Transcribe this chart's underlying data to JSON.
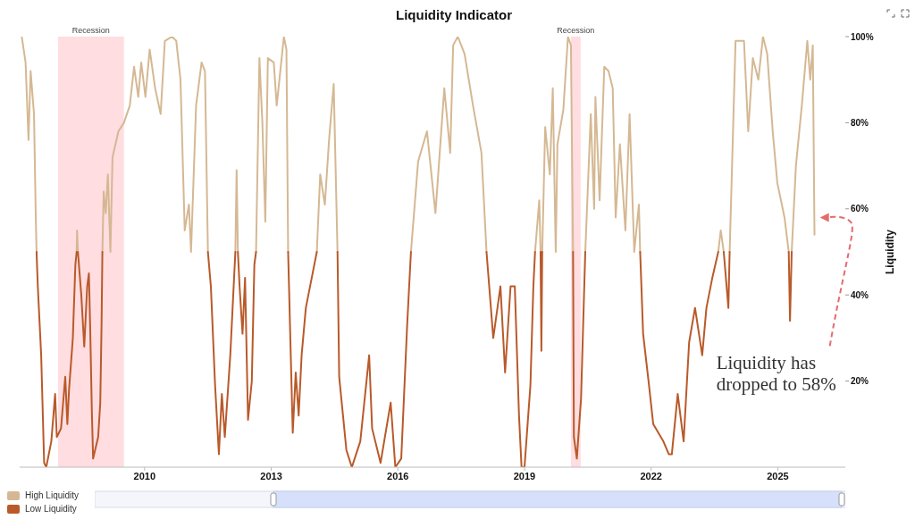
{
  "chart_data": {
    "type": "line",
    "title": "Liquidity Indicator",
    "ylabel": "Liquidity",
    "xlim": [
      2007.04,
      2026.6
    ],
    "xticks": [
      2010,
      2013,
      2016,
      2019,
      2022,
      2025
    ],
    "ylim": [
      0,
      100
    ],
    "yticks": [
      {
        "value": 20,
        "label": "20%"
      },
      {
        "value": 40,
        "label": "40%"
      },
      {
        "value": 60,
        "label": "60%"
      },
      {
        "value": 80,
        "label": "80%"
      },
      {
        "value": 100,
        "label": "100%"
      }
    ],
    "legend": "bottom left",
    "bands": [
      {
        "axis": "x",
        "from": 2007.95,
        "to": 2009.51,
        "label": "Recession",
        "color": "#ffdde1"
      },
      {
        "axis": "x",
        "from": 2020.1,
        "to": 2020.33,
        "label": "Recession",
        "color": "#ffdde1"
      }
    ],
    "annotations": [
      "Liquidity has dropped to 58%"
    ],
    "series": [
      {
        "name": "High Liquidity",
        "color": "#d5b893",
        "x": [
          2007.09,
          2007.18,
          2007.25,
          2007.3,
          2007.38,
          2007.42,
          2007.44,
          2007.9,
          2008.39,
          2008.4,
          2008.42,
          2008.7,
          2009.0,
          2009.03,
          2009.08,
          2009.13,
          2009.19,
          2009.24,
          2009.38,
          2009.51,
          2009.65,
          2009.75,
          2009.85,
          2009.92,
          2010.02,
          2010.12,
          2010.25,
          2010.38,
          2010.48,
          2010.65,
          2010.75,
          2010.85,
          2010.95,
          2011.05,
          2011.1,
          2011.22,
          2011.35,
          2011.43,
          2011.5,
          2011.8,
          2012.15,
          2012.18,
          2012.21,
          2012.4,
          2012.64,
          2012.72,
          2012.79,
          2012.86,
          2012.92,
          2013.06,
          2013.13,
          2013.3,
          2013.36,
          2013.4,
          2013.7,
          2014.08,
          2014.16,
          2014.27,
          2014.37,
          2014.48,
          2014.57,
          2015.4,
          2016.31,
          2016.48,
          2016.69,
          2016.89,
          2017.1,
          2017.24,
          2017.31,
          2017.42,
          2017.58,
          2017.78,
          2017.98,
          2018.1,
          2018.7,
          2019.25,
          2019.35,
          2019.38,
          2019.4,
          2019.42,
          2019.49,
          2019.6,
          2019.67,
          2019.74,
          2019.78,
          2019.92,
          2020.03,
          2020.1,
          2020.15,
          2020.3,
          2020.44,
          2020.57,
          2020.65,
          2020.68,
          2020.78,
          2020.89,
          2020.99,
          2021.09,
          2021.16,
          2021.26,
          2021.39,
          2021.49,
          2021.6,
          2021.71,
          2021.74,
          2022.5,
          2023.59,
          2023.65,
          2023.72,
          2023.8,
          2023.86,
          2024.0,
          2024.2,
          2024.3,
          2024.41,
          2024.54,
          2024.65,
          2024.75,
          2024.88,
          2024.99,
          2025.16,
          2025.26,
          2025.3,
          2025.33,
          2025.43,
          2025.57,
          2025.7,
          2025.77,
          2025.83,
          2025.87
        ],
        "values": [
          100,
          94,
          76,
          92,
          82,
          59,
          50,
          null,
          50,
          55,
          50,
          null,
          50,
          64,
          59,
          68,
          50,
          72,
          78,
          80,
          84,
          93,
          86,
          94,
          86,
          97,
          88,
          82,
          99,
          100,
          99,
          90,
          55,
          61,
          50,
          84,
          94,
          92,
          50,
          null,
          50,
          69,
          50,
          null,
          50,
          95,
          80,
          57,
          95,
          94,
          84,
          100,
          97,
          50,
          null,
          50,
          68,
          61,
          76,
          89,
          50,
          null,
          50,
          71,
          78,
          59,
          88,
          73,
          98,
          100,
          96,
          84,
          73,
          50,
          null,
          50,
          62,
          50,
          null,
          50,
          79,
          68,
          88,
          50,
          75,
          83,
          100,
          98,
          50,
          null,
          50,
          82,
          60,
          86,
          62,
          93,
          92,
          88,
          58,
          75,
          55,
          82,
          50,
          61,
          50,
          null,
          50,
          55,
          50,
          null,
          50,
          99,
          99,
          78,
          95,
          90,
          100,
          96,
          78,
          66,
          58,
          50,
          null,
          50,
          70,
          84,
          99,
          90,
          98,
          54
        ]
      },
      {
        "name": "Low Liquidity",
        "color": "#b95a2a",
        "x": [
          2007.44,
          2007.47,
          2007.55,
          2007.62,
          2007.67,
          2007.79,
          2007.88,
          2007.92,
          2008.02,
          2008.12,
          2008.17,
          2008.21,
          2008.3,
          2008.36,
          2008.39,
          2008.4,
          2008.42,
          2008.5,
          2008.57,
          2008.64,
          2008.68,
          2008.71,
          2008.75,
          2008.78,
          2008.9,
          2008.95,
          2008.98,
          2009.0,
          2010.0,
          2011.5,
          2011.57,
          2011.67,
          2011.76,
          2011.83,
          2011.9,
          2012.03,
          2012.15,
          2012.18,
          2012.21,
          2012.25,
          2012.32,
          2012.38,
          2012.45,
          2012.54,
          2012.6,
          2012.64,
          2013.0,
          2013.4,
          2013.51,
          2013.58,
          2013.65,
          2013.72,
          2013.82,
          2013.96,
          2014.08,
          2014.3,
          2014.57,
          2014.61,
          2014.78,
          2014.91,
          2015.11,
          2015.32,
          2015.39,
          2015.59,
          2015.83,
          2015.94,
          2016.08,
          2016.22,
          2016.31,
          2017.0,
          2018.1,
          2018.26,
          2018.43,
          2018.54,
          2018.67,
          2018.77,
          2018.87,
          2018.93,
          2019.0,
          2019.14,
          2019.21,
          2019.25,
          2019.3,
          2019.38,
          2019.4,
          2019.42,
          2019.8,
          2020.15,
          2020.17,
          2020.24,
          2020.34,
          2020.41,
          2020.44,
          2021.0,
          2021.74,
          2021.81,
          2021.95,
          2022.05,
          2022.29,
          2022.42,
          2022.49,
          2022.63,
          2022.77,
          2022.9,
          2023.04,
          2023.21,
          2023.31,
          2023.45,
          2023.59,
          2023.65,
          2023.72,
          2023.83,
          2023.86,
          2024.5,
          2025.26,
          2025.29,
          2025.33
        ],
        "values": [
          50,
          42,
          26,
          1,
          0,
          6,
          17,
          7,
          9,
          21,
          10,
          18,
          30,
          47,
          50,
          null,
          50,
          40,
          28,
          42,
          45,
          33,
          13,
          2,
          7,
          15,
          33,
          50,
          null,
          50,
          42,
          19,
          3,
          17,
          7,
          26,
          50,
          null,
          50,
          42,
          31,
          44,
          11,
          20,
          47,
          50,
          null,
          50,
          8,
          22,
          12,
          26,
          37,
          44,
          50,
          null,
          50,
          21,
          4,
          0,
          6,
          26,
          9,
          1,
          15,
          0,
          2,
          33,
          50,
          null,
          50,
          30,
          42,
          22,
          42,
          42,
          12,
          0,
          0,
          19,
          42,
          50,
          null,
          50,
          27,
          50,
          null,
          50,
          7,
          2,
          16,
          40,
          50,
          null,
          50,
          31,
          19,
          10,
          6,
          3,
          3,
          17,
          6,
          29,
          37,
          26,
          37,
          44,
          50,
          null,
          50,
          37,
          50,
          null,
          50,
          34,
          50
        ]
      }
    ]
  }
}
